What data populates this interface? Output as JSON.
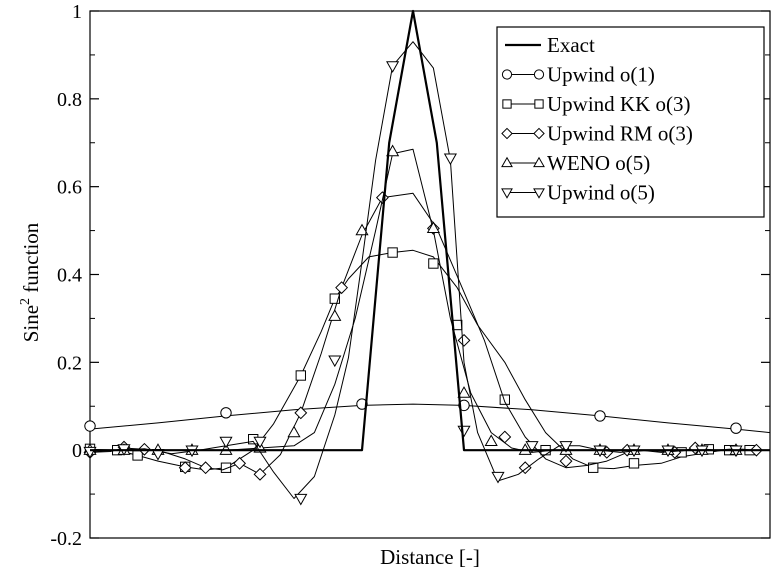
{
  "chart_data": {
    "type": "line",
    "title": "",
    "xlabel": "Distance [-]",
    "ylabel_main": "Sine",
    "ylabel_sup": "2",
    "ylabel_rest": " function",
    "xlim": [
      0,
      100
    ],
    "ylim": [
      -0.2,
      1
    ],
    "yticks": [
      -0.2,
      0,
      0.2,
      0.4,
      0.6,
      0.8,
      1
    ],
    "ytick_labels": [
      "-0.2",
      "0",
      "0.2",
      "0.4",
      "0.6",
      "0.8",
      "1"
    ],
    "grid": false,
    "legend_position": "top-right",
    "series": [
      {
        "name": "Exact",
        "marker": "none",
        "stroke_width": 2.2,
        "x": [
          0,
          40,
          44,
          47.5,
          51,
          55,
          100
        ],
        "y": [
          0,
          0,
          0.7,
          1.0,
          0.7,
          0,
          0
        ]
      },
      {
        "name": "Upwind o(1)",
        "marker": "circle",
        "stroke_width": 1,
        "x": [
          0,
          10,
          20,
          30,
          40,
          47.5,
          55,
          65,
          75,
          85,
          95,
          100
        ],
        "y": [
          0.048,
          0.062,
          0.078,
          0.092,
          0.102,
          0.105,
          0.102,
          0.092,
          0.078,
          0.062,
          0.048,
          0.04
        ],
        "mx": [
          0,
          20,
          40,
          55,
          75,
          95
        ],
        "my": [
          0.055,
          0.085,
          0.105,
          0.102,
          0.078,
          0.05
        ]
      },
      {
        "name": "Upwind KK o(3)",
        "marker": "square",
        "stroke_width": 1,
        "x": [
          0,
          4,
          7,
          10,
          14,
          17,
          20,
          24,
          27,
          31,
          34,
          36,
          38,
          41,
          44.5,
          47.5,
          50.5,
          54,
          57,
          61,
          64,
          67,
          71,
          74,
          77,
          80,
          84,
          87,
          91,
          94,
          97
        ],
        "y": [
          0.002,
          0,
          -0.012,
          -0.025,
          -0.038,
          -0.045,
          -0.04,
          0,
          0.06,
          0.17,
          0.27,
          0.345,
          0.39,
          0.44,
          0.45,
          0.455,
          0.44,
          0.37,
          0.285,
          0.2,
          0.115,
          0.04,
          -0.02,
          -0.04,
          -0.042,
          -0.035,
          -0.03,
          -0.015,
          -0.005,
          0.002,
          0
        ],
        "mx": [
          0,
          4,
          7,
          14,
          20,
          24,
          31,
          36,
          44.5,
          50.5,
          54,
          61,
          67,
          74,
          80,
          87,
          91,
          94,
          97
        ],
        "my": [
          0.003,
          0,
          -0.012,
          -0.038,
          -0.04,
          0.025,
          0.17,
          0.345,
          0.45,
          0.425,
          0.285,
          0.115,
          0,
          -0.04,
          -0.03,
          -0.005,
          0.002,
          0,
          0
        ]
      },
      {
        "name": "Upwind RM o(3)",
        "marker": "diamond",
        "stroke_width": 1,
        "x": [
          0,
          3,
          5,
          8,
          11,
          14,
          17,
          19.5,
          22,
          25,
          28,
          31,
          34,
          37,
          40,
          43,
          47.5,
          51,
          55,
          58,
          61,
          64,
          67,
          70,
          73,
          76,
          79,
          82,
          86,
          89,
          92,
          95,
          98
        ],
        "y": [
          -0.005,
          -0.003,
          0.005,
          0.002,
          -0.005,
          -0.02,
          -0.04,
          -0.045,
          -0.03,
          -0.055,
          -0.01,
          0.085,
          0.22,
          0.37,
          0.49,
          0.575,
          0.585,
          0.505,
          0.36,
          0.25,
          0.11,
          0.03,
          -0.02,
          -0.04,
          -0.035,
          -0.025,
          -0.005,
          0,
          -0.005,
          0.005,
          0,
          0.003,
          0
        ],
        "mx": [
          0,
          5,
          8,
          14,
          17,
          22,
          25,
          31,
          37,
          43,
          50.5,
          55,
          61,
          64,
          70,
          76,
          79,
          86,
          89,
          95,
          98
        ],
        "my": [
          -0.005,
          0.007,
          0.002,
          -0.04,
          -0.04,
          -0.03,
          -0.055,
          0.085,
          0.37,
          0.575,
          0.505,
          0.25,
          0.03,
          -0.04,
          -0.025,
          -0.005,
          0,
          -0.005,
          0.005,
          0,
          0
        ]
      },
      {
        "name": "WENO o(5)",
        "marker": "triangle-up",
        "stroke_width": 1,
        "x": [
          0,
          5,
          10,
          15,
          20,
          25,
          30,
          33,
          36,
          39,
          42,
          44.5,
          47.5,
          50.5,
          53,
          56,
          59,
          62,
          65,
          68,
          71,
          74,
          77,
          80,
          85,
          90,
          95,
          100
        ],
        "y": [
          0,
          0,
          0,
          0,
          0,
          0.005,
          0.01,
          0.04,
          0.15,
          0.3,
          0.5,
          0.675,
          0.685,
          0.5,
          0.3,
          0.13,
          0.04,
          0.005,
          -0.005,
          0,
          0,
          0,
          0,
          0,
          0,
          0,
          0,
          0
        ],
        "mx": [
          0,
          5,
          10,
          15,
          20,
          25,
          30,
          36,
          40,
          44.5,
          50.5,
          55,
          59,
          64,
          70,
          75,
          80,
          85,
          90,
          95
        ],
        "my": [
          0,
          0,
          0,
          0,
          0,
          0.005,
          0.04,
          0.305,
          0.5,
          0.68,
          0.505,
          0.13,
          0.02,
          0,
          0,
          0,
          0,
          0,
          0,
          0
        ]
      },
      {
        "name": "Upwind o(5)",
        "marker": "triangle-down",
        "stroke_width": 1,
        "x": [
          0,
          4,
          8,
          12,
          16,
          20,
          24,
          27,
          30,
          33,
          36,
          38,
          40,
          42,
          44.5,
          47.5,
          50.5,
          53,
          55,
          57,
          60,
          63,
          66,
          69,
          72,
          75,
          78,
          81,
          84,
          88,
          92,
          96,
          100
        ],
        "y": [
          -0.003,
          0,
          0.003,
          -0.008,
          0,
          0.01,
          0.02,
          -0.05,
          -0.11,
          -0.06,
          0.08,
          0.21,
          0.43,
          0.66,
          0.875,
          0.93,
          0.87,
          0.66,
          0.2,
          0.04,
          -0.07,
          -0.055,
          -0.02,
          0.01,
          0.01,
          0,
          -0.005,
          0,
          -0.005,
          0,
          0,
          0,
          0
        ],
        "mx": [
          0,
          5,
          10,
          15,
          20,
          25,
          31,
          36,
          44.5,
          53,
          55,
          60,
          65,
          70,
          75,
          80,
          85,
          90,
          95
        ],
        "my": [
          -0.003,
          0.003,
          -0.008,
          0,
          0.02,
          0.02,
          -0.11,
          0.205,
          0.875,
          0.665,
          0.045,
          -0.06,
          0.01,
          0.01,
          0,
          0,
          0,
          0,
          0
        ]
      }
    ]
  }
}
